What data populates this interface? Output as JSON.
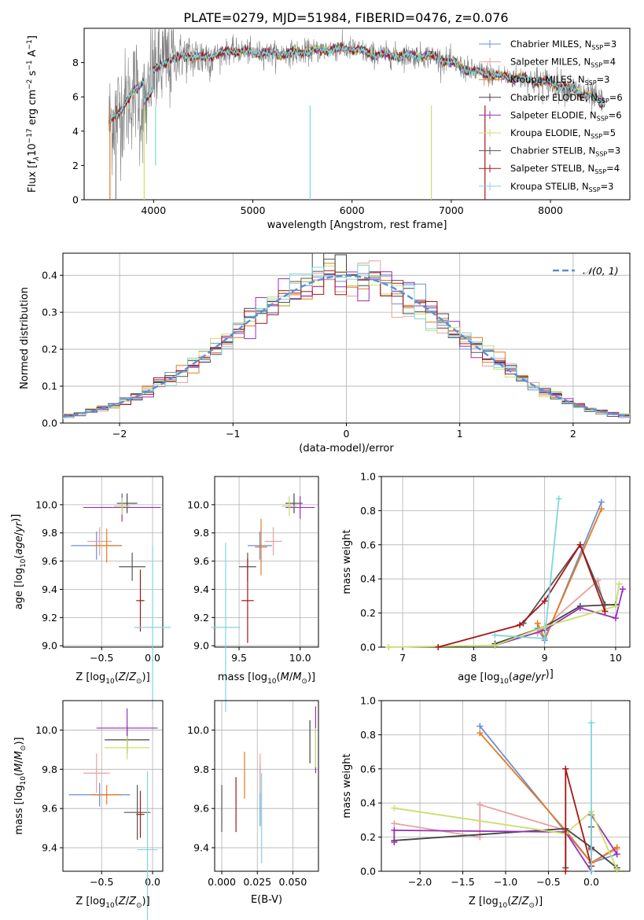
{
  "figure": {
    "title": "PLATE=0279, MJD=51984, FIBERID=0476, z=0.076"
  },
  "colors": {
    "Chabrier MILES": "#6a8fd8",
    "Salpeter MILES": "#e8a0a0",
    "Kroupa MILES": "#e8791e",
    "Chabrier ELODIE": "#444444",
    "Salpeter ELODIE": "#9b2fb8",
    "Kroupa ELODIE": "#c8e06a",
    "Chabrier STELIB": "#555555",
    "Salpeter STELIB": "#a81515",
    "Kroupa STELIB": "#7fd6dc"
  },
  "chart_data": [
    {
      "id": "spectrum",
      "type": "line",
      "title": "PLATE=0279, MJD=51984, FIBERID=0476, z=0.076",
      "xlabel": "wavelength [Angstrom, rest frame]",
      "ylabel_parts": [
        "Flux [f",
        "λ",
        "10",
        "−17",
        " erg cm",
        "−2",
        " s",
        "−1",
        " A",
        "−1",
        "]"
      ],
      "xlim": [
        3300,
        8800
      ],
      "ylim": [
        0,
        10
      ],
      "xticks": [
        "4000",
        "5000",
        "6000",
        "7000",
        "8000"
      ],
      "yticks": [
        "0",
        "2",
        "4",
        "6",
        "8"
      ],
      "legend_loc": "upper right",
      "legend": [
        {
          "name": "Chabrier MILES",
          "sub": "3"
        },
        {
          "name": "Salpeter MILES",
          "sub": "4"
        },
        {
          "name": "Kroupa MILES",
          "sub": "3"
        },
        {
          "name": "Chabrier ELODIE",
          "sub": "6"
        },
        {
          "name": "Salpeter ELODIE",
          "sub": "6"
        },
        {
          "name": "Kroupa ELODIE",
          "sub": "5"
        },
        {
          "name": "Chabrier STELIB",
          "sub": "3"
        },
        {
          "name": "Salpeter STELIB",
          "sub": "4"
        },
        {
          "name": "Kroupa STELIB",
          "sub": "3"
        }
      ],
      "legend_n_label": "N",
      "legend_n_sub": "SSP",
      "continuum": {
        "x": [
          3550,
          3700,
          3900,
          4000,
          4100,
          4300,
          4500,
          4800,
          5000,
          5200,
          5500,
          5800,
          6000,
          6200,
          6500,
          6800,
          7000,
          7200,
          7500,
          7700,
          8000,
          8200,
          8400,
          8500
        ],
        "y": [
          4.5,
          5.5,
          7.0,
          7.5,
          8.0,
          8.4,
          8.3,
          8.7,
          8.6,
          8.5,
          8.6,
          8.8,
          8.8,
          8.5,
          8.4,
          8.4,
          8.0,
          7.5,
          7.2,
          7.1,
          6.8,
          6.5,
          6.0,
          5.7
        ]
      }
    },
    {
      "id": "residuals",
      "type": "line",
      "xlabel": "(data-model)/error",
      "ylabel": "Normed distribution",
      "xlim": [
        -2.5,
        2.5
      ],
      "ylim": [
        0,
        0.46
      ],
      "xticks": [
        "−2",
        "−1",
        "0",
        "1",
        "2"
      ],
      "yticks": [
        "0.0",
        "0.1",
        "0.2",
        "0.3",
        "0.4"
      ],
      "legend": "𝒩(0, 1)",
      "curve": {
        "type": "normal",
        "mean": 0,
        "sigma": 1,
        "color": "#5b8ed6"
      }
    },
    {
      "id": "age-Z",
      "type": "scatter",
      "xlabel": "Z [log10(Z/Z⊙)]",
      "ylabel": "age [log10(age/yr)]",
      "xlim": [
        -0.88,
        0.1
      ],
      "ylim": [
        8.99,
        10.2
      ],
      "xticks": [
        "−0.5",
        "0.0"
      ],
      "yticks": [
        "9.0",
        "9.2",
        "9.4",
        "9.6",
        "9.8",
        "10.0"
      ],
      "points": [
        {
          "model": "Chabrier MILES",
          "x": -0.55,
          "y": 9.71,
          "xerr": 0.25,
          "yerr": 0.1
        },
        {
          "model": "Salpeter MILES",
          "x": -0.52,
          "y": 9.74,
          "xerr": 0.12,
          "yerr": 0.1
        },
        {
          "model": "Kroupa MILES",
          "x": -0.45,
          "y": 9.71,
          "xerr": 0.14,
          "yerr": 0.12
        },
        {
          "model": "Chabrier ELODIE",
          "x": -0.25,
          "y": 10.01,
          "xerr": 0.1,
          "yerr": 0.07
        },
        {
          "model": "Salpeter ELODIE",
          "x": -0.3,
          "y": 9.98,
          "xerr": 0.38,
          "yerr": 0.1
        },
        {
          "model": "Kroupa ELODIE",
          "x": -0.3,
          "y": 9.99,
          "xerr": 0.08,
          "yerr": 0.06
        },
        {
          "model": "Chabrier STELIB",
          "x": -0.2,
          "y": 9.56,
          "xerr": 0.13,
          "yerr": 0.1
        },
        {
          "model": "Salpeter STELIB",
          "x": -0.12,
          "y": 9.32,
          "xerr": 0.04,
          "yerr": 0.22
        },
        {
          "model": "Kroupa STELIB",
          "x": 0.0,
          "y": 9.13,
          "xerr": 0.18,
          "yerr": 0.58
        }
      ]
    },
    {
      "id": "age-mass",
      "type": "scatter",
      "xlabel": "mass [log10(M/M⊙)]",
      "ylabel": "",
      "xlim": [
        9.3,
        10.15
      ],
      "ylim": [
        8.99,
        10.2
      ],
      "xticks": [
        "9.5",
        "10.0"
      ],
      "yticks": [
        "9.0",
        "9.2",
        "9.4",
        "9.6",
        "9.8",
        "10.0"
      ],
      "points": [
        {
          "model": "Chabrier MILES",
          "x": 9.67,
          "y": 9.71,
          "xerr": 0.1,
          "yerr": 0.1
        },
        {
          "model": "Salpeter MILES",
          "x": 9.78,
          "y": 9.74,
          "xerr": 0.07,
          "yerr": 0.1
        },
        {
          "model": "Kroupa MILES",
          "x": 9.68,
          "y": 9.7,
          "xerr": 0.05,
          "yerr": 0.2
        },
        {
          "model": "Chabrier ELODIE",
          "x": 9.95,
          "y": 10.01,
          "xerr": 0.07,
          "yerr": 0.07
        },
        {
          "model": "Salpeter ELODIE",
          "x": 10.0,
          "y": 9.98,
          "xerr": 0.12,
          "yerr": 0.08
        },
        {
          "model": "Kroupa ELODIE",
          "x": 9.91,
          "y": 9.99,
          "xerr": 0.06,
          "yerr": 0.07
        },
        {
          "model": "Chabrier STELIB",
          "x": 9.57,
          "y": 9.56,
          "xerr": 0.07,
          "yerr": 0.1
        },
        {
          "model": "Salpeter STELIB",
          "x": 9.57,
          "y": 9.32,
          "xerr": 0.05,
          "yerr": 0.3
        },
        {
          "model": "Kroupa STELIB",
          "x": 9.39,
          "y": 9.13,
          "xerr": 0.12,
          "yerr": 0.6
        }
      ]
    },
    {
      "id": "weight-age",
      "type": "line",
      "xlabel": "age [log10(age/yr)]",
      "ylabel": "mass weight",
      "xlim": [
        6.7,
        10.2
      ],
      "ylim": [
        0,
        1
      ],
      "xticks": [
        "7",
        "8",
        "9",
        "10"
      ],
      "yticks": [
        "0.0",
        "0.2",
        "0.4",
        "0.6",
        "0.8",
        "1.0"
      ],
      "series": [
        {
          "model": "Chabrier MILES",
          "x": [
            8.9,
            9.0,
            9.8
          ],
          "y": [
            0.11,
            0.04,
            0.85
          ]
        },
        {
          "model": "Salpeter MILES",
          "x": [
            8.9,
            9.75,
            9.85
          ],
          "y": [
            0.08,
            0.39,
            0.21
          ]
        },
        {
          "model": "Kroupa MILES",
          "x": [
            8.9,
            9.0,
            9.8
          ],
          "y": [
            0.14,
            0.05,
            0.81
          ]
        },
        {
          "model": "Chabrier ELODIE",
          "x": [
            8.3,
            9.0,
            9.5,
            10.0
          ],
          "y": [
            0.02,
            0.12,
            0.24,
            0.25
          ]
        },
        {
          "model": "Salpeter ELODIE",
          "x": [
            8.3,
            9.0,
            9.5,
            10.0,
            10.1
          ],
          "y": [
            0.01,
            0.1,
            0.23,
            0.17,
            0.34
          ]
        },
        {
          "model": "Kroupa ELODIE",
          "x": [
            6.8,
            8.3,
            9.0,
            10.0,
            10.05
          ],
          "y": [
            0.0,
            0.01,
            0.12,
            0.24,
            0.37
          ]
        },
        {
          "model": "Chabrier STELIB",
          "x": [
            8.7,
            9.5,
            9.85
          ],
          "y": [
            0.14,
            0.6,
            0.25
          ]
        },
        {
          "model": "Salpeter STELIB",
          "x": [
            7.5,
            8.65,
            9.0,
            9.5,
            9.85
          ],
          "y": [
            0.0,
            0.13,
            0.27,
            0.6,
            0.21
          ]
        },
        {
          "model": "Kroupa STELIB",
          "x": [
            8.3,
            9.0,
            9.2
          ],
          "y": [
            0.07,
            0.05,
            0.87
          ]
        }
      ]
    },
    {
      "id": "mass-Z",
      "type": "scatter",
      "xlabel": "Z [log10(Z/Z⊙)]",
      "ylabel": "mass [log10(M/M⊙)]",
      "xlim": [
        -0.88,
        0.1
      ],
      "ylim": [
        9.28,
        10.15
      ],
      "xticks": [
        "−0.5",
        "0.0"
      ],
      "yticks": [
        "9.4",
        "9.6",
        "9.8",
        "10.0"
      ],
      "points": [
        {
          "model": "Chabrier MILES",
          "x": -0.52,
          "y": 9.67,
          "xerr": 0.3,
          "yerr": 0.06
        },
        {
          "model": "Salpeter MILES",
          "x": -0.55,
          "y": 9.78,
          "xerr": 0.13,
          "yerr": 0.1
        },
        {
          "model": "Kroupa MILES",
          "x": -0.45,
          "y": 9.67,
          "xerr": 0.15,
          "yerr": 0.05
        },
        {
          "model": "Chabrier ELODIE",
          "x": -0.25,
          "y": 9.95,
          "xerr": 0.22,
          "yerr": 0.07
        },
        {
          "model": "Salpeter ELODIE",
          "x": -0.25,
          "y": 10.01,
          "xerr": 0.3,
          "yerr": 0.1
        },
        {
          "model": "Kroupa ELODIE",
          "x": -0.25,
          "y": 9.91,
          "xerr": 0.22,
          "yerr": 0.06
        },
        {
          "model": "Chabrier STELIB",
          "x": -0.15,
          "y": 9.58,
          "xerr": 0.13,
          "yerr": 0.14
        },
        {
          "model": "Salpeter STELIB",
          "x": -0.12,
          "y": 9.57,
          "xerr": 0.04,
          "yerr": 0.12
        },
        {
          "model": "Kroupa STELIB",
          "x": -0.05,
          "y": 9.39,
          "xerr": 0.1,
          "yerr": 0.4
        }
      ]
    },
    {
      "id": "mass-EBV",
      "type": "scatter",
      "xlabel": "E(B-V)",
      "ylabel": "",
      "xlim": [
        -0.005,
        0.068
      ],
      "ylim": [
        9.28,
        10.15
      ],
      "xticks": [
        "0.000",
        "0.025",
        "0.050"
      ],
      "yticks": [
        "9.4",
        "9.6",
        "9.8",
        "10.0"
      ],
      "points": [
        {
          "model": "Chabrier MILES",
          "x": 0.027,
          "y": 9.67,
          "xerr": 0,
          "yerr": 0.16
        },
        {
          "model": "Salpeter MILES",
          "x": 0.027,
          "y": 9.78,
          "xerr": 0,
          "yerr": 0.1
        },
        {
          "model": "Kroupa MILES",
          "x": 0.016,
          "y": 9.77,
          "xerr": 0,
          "yerr": 0.12
        },
        {
          "model": "Chabrier ELODIE",
          "x": 0.062,
          "y": 9.94,
          "xerr": 0,
          "yerr": 0.11
        },
        {
          "model": "Salpeter ELODIE",
          "x": 0.066,
          "y": 9.95,
          "xerr": 0,
          "yerr": 0.17
        },
        {
          "model": "Kroupa ELODIE",
          "x": 0.066,
          "y": 9.91,
          "xerr": 0,
          "yerr": 0.1
        },
        {
          "model": "Chabrier STELIB",
          "x": 0.0,
          "y": 9.6,
          "xerr": 0,
          "yerr": 0.12
        },
        {
          "model": "Salpeter STELIB",
          "x": 0.01,
          "y": 9.62,
          "xerr": 0,
          "yerr": 0.14
        },
        {
          "model": "Kroupa STELIB",
          "x": 0.028,
          "y": 9.55,
          "xerr": 0,
          "yerr": 0.23
        }
      ]
    },
    {
      "id": "weight-Z",
      "type": "line",
      "xlabel": "Z [log10(Z/Z⊙)]",
      "ylabel": "mass weight",
      "xlim": [
        -2.45,
        0.45
      ],
      "ylim": [
        0,
        1
      ],
      "xticks": [
        "−2.0",
        "−1.5",
        "−1.0",
        "−0.5",
        "0.0"
      ],
      "yticks": [
        "0.0",
        "0.2",
        "0.4",
        "0.6",
        "0.8",
        "1.0"
      ],
      "series": [
        {
          "model": "Chabrier MILES",
          "x": [
            -1.3,
            -0.3,
            0.0,
            0.3
          ],
          "y": [
            0.85,
            0.23,
            0.05,
            0.1
          ]
        },
        {
          "model": "Salpeter MILES",
          "x": [
            -2.3,
            -1.3,
            -1.3,
            -0.3,
            0.0,
            0.3
          ],
          "y": [
            0.28,
            0.2,
            0.39,
            0.24,
            0.05,
            0.13
          ]
        },
        {
          "model": "Kroupa MILES",
          "x": [
            -1.3,
            -0.3,
            0.0,
            0.3
          ],
          "y": [
            0.81,
            0.24,
            0.05,
            0.14
          ]
        },
        {
          "model": "Chabrier ELODIE",
          "x": [
            -2.3,
            -0.3,
            0.0,
            0.3
          ],
          "y": [
            0.18,
            0.25,
            0.14,
            0.02
          ]
        },
        {
          "model": "Salpeter ELODIE",
          "x": [
            -2.3,
            -2.3,
            -0.3,
            0.0,
            0.0,
            0.3
          ],
          "y": [
            0.17,
            0.24,
            0.23,
            0.0,
            0.33,
            0.1
          ]
        },
        {
          "model": "Kroupa ELODIE",
          "x": [
            -2.3,
            -0.3,
            0.0,
            0.3
          ],
          "y": [
            0.37,
            0.22,
            0.35,
            0.01
          ]
        },
        {
          "model": "Chabrier STELIB",
          "x": [
            -0.3,
            -0.3,
            0.0,
            0.0
          ],
          "y": [
            0.02,
            0.25,
            0.14,
            0.26
          ]
        },
        {
          "model": "Salpeter STELIB",
          "x": [
            -0.3,
            -0.3,
            0.0,
            0.0
          ],
          "y": [
            0.0,
            0.6,
            0.03,
            0.13
          ]
        },
        {
          "model": "Kroupa STELIB",
          "x": [
            0.0,
            0.0,
            0.0
          ],
          "y": [
            0.0,
            0.87,
            0.12
          ]
        }
      ]
    }
  ]
}
